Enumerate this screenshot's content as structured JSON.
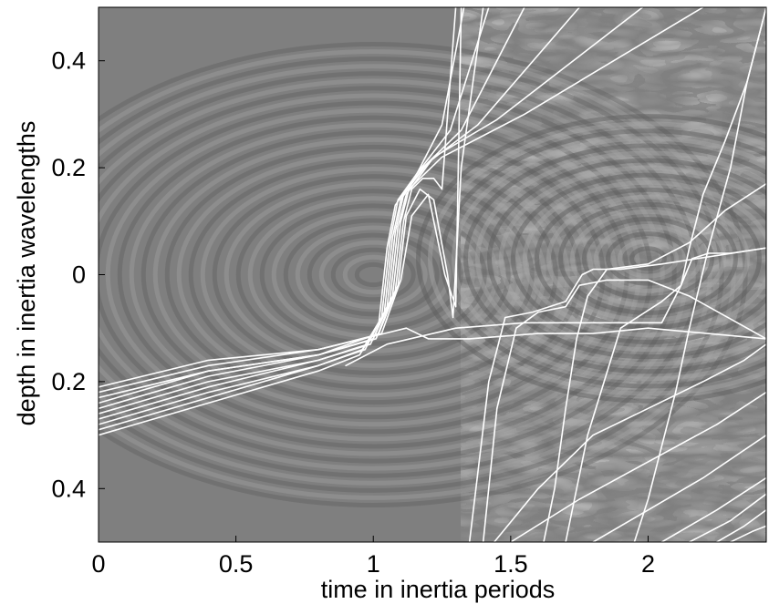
{
  "chart_data": {
    "type": "line",
    "title": "",
    "xlabel": "time in inertia periods",
    "ylabel": "depth in inertia wavelengths",
    "xlim": [
      0,
      2.43
    ],
    "ylim": [
      -0.5,
      0.5
    ],
    "x_ticks": [
      0,
      0.5,
      1,
      1.5,
      2
    ],
    "x_tick_labels": [
      "0",
      "0.5",
      "1",
      "1.5",
      "2"
    ],
    "y_ticks": [
      0.4,
      0.2,
      0,
      -0.2,
      -0.4
    ],
    "y_tick_labels": [
      "0.4",
      "0.2",
      "0",
      "0.2",
      "0.4"
    ],
    "grid": false,
    "background": "grayscale wave-field image",
    "colors": {
      "background_gray": "#7f7f7f",
      "ray": "#ffffff",
      "axes": "#000000"
    },
    "series": [
      {
        "x": [
          0,
          0.4,
          0.8,
          0.95,
          1.02,
          1.05,
          1.08,
          1.15,
          1.25,
          1.33
        ],
        "y": [
          -0.3,
          -0.24,
          -0.18,
          -0.15,
          -0.09,
          0.05,
          0.13,
          0.18,
          0.28,
          0.5
        ]
      },
      {
        "x": [
          0,
          0.4,
          0.8,
          0.96,
          1.03,
          1.06,
          1.09,
          1.16,
          1.28,
          1.42
        ],
        "y": [
          -0.29,
          -0.23,
          -0.17,
          -0.14,
          -0.08,
          0.06,
          0.14,
          0.19,
          0.27,
          0.5
        ]
      },
      {
        "x": [
          0,
          0.4,
          0.8,
          0.97,
          1.04,
          1.07,
          1.1,
          1.18,
          1.32,
          1.55
        ],
        "y": [
          -0.28,
          -0.22,
          -0.17,
          -0.14,
          -0.07,
          0.07,
          0.14,
          0.2,
          0.27,
          0.5
        ]
      },
      {
        "x": [
          0,
          0.4,
          0.8,
          0.98,
          1.05,
          1.08,
          1.11,
          1.2,
          1.38,
          1.75
        ],
        "y": [
          -0.27,
          -0.21,
          -0.16,
          -0.13,
          -0.06,
          0.08,
          0.15,
          0.21,
          0.28,
          0.5
        ]
      },
      {
        "x": [
          0,
          0.4,
          0.8,
          0.99,
          1.06,
          1.09,
          1.12,
          1.22,
          1.45,
          1.98
        ],
        "y": [
          -0.26,
          -0.2,
          -0.16,
          -0.13,
          -0.05,
          0.09,
          0.15,
          0.22,
          0.29,
          0.5
        ]
      },
      {
        "x": [
          0,
          0.4,
          0.8,
          1.0,
          1.07,
          1.1,
          1.13,
          1.25,
          1.55,
          2.2
        ],
        "y": [
          -0.25,
          -0.19,
          -0.15,
          -0.12,
          -0.04,
          0.1,
          0.16,
          0.22,
          0.3,
          0.5
        ]
      },
      {
        "x": [
          0,
          0.4,
          0.8,
          1.01,
          1.08,
          1.11,
          1.14,
          1.18,
          1.22,
          1.25,
          1.3
        ],
        "y": [
          -0.24,
          -0.18,
          -0.15,
          -0.12,
          -0.03,
          0.1,
          0.16,
          0.18,
          0.18,
          0.16,
          0.5
        ]
      },
      {
        "x": [
          0,
          0.4,
          0.8,
          1.02,
          1.09,
          1.12,
          1.17,
          1.22,
          1.27,
          1.29,
          1.32,
          1.4
        ],
        "y": [
          -0.23,
          -0.18,
          -0.15,
          -0.11,
          -0.02,
          0.11,
          0.16,
          0.14,
          0.0,
          -0.08,
          0.2,
          0.5
        ]
      },
      {
        "x": [
          0,
          0.4,
          0.8,
          1.03,
          1.1,
          1.14,
          1.2,
          1.26,
          1.3,
          1.32
        ],
        "y": [
          -0.22,
          -0.17,
          -0.14,
          -0.11,
          -0.01,
          0.11,
          0.15,
          0.0,
          -0.06,
          0.5
        ]
      },
      {
        "x": [
          0,
          0.4,
          0.8,
          1.04,
          1.12,
          1.2,
          1.35,
          1.6,
          1.8,
          2.0,
          2.43
        ],
        "y": [
          -0.21,
          -0.16,
          -0.14,
          -0.11,
          -0.1,
          -0.12,
          -0.12,
          -0.11,
          -0.11,
          -0.1,
          -0.12
        ]
      },
      {
        "x": [
          0.9,
          1.05,
          1.3,
          1.55,
          1.8,
          2.05,
          2.12,
          2.16,
          2.22,
          2.3,
          2.43
        ],
        "y": [
          -0.17,
          -0.13,
          -0.1,
          -0.09,
          -0.09,
          -0.09,
          -0.02,
          0.03,
          0.04,
          0.04,
          0.05
        ]
      },
      {
        "x": [
          1.4,
          1.45,
          1.52,
          1.6,
          1.7,
          1.75,
          1.85,
          2.0,
          2.15,
          2.43
        ],
        "y": [
          -0.5,
          -0.25,
          -0.1,
          -0.07,
          -0.06,
          -0.02,
          -0.01,
          -0.01,
          -0.04,
          -0.12
        ]
      },
      {
        "x": [
          1.35,
          1.42,
          1.48,
          1.58,
          1.7,
          1.76,
          1.8,
          1.9,
          2.05,
          2.43
        ],
        "y": [
          -0.5,
          -0.2,
          -0.08,
          -0.07,
          -0.05,
          0.0,
          0.01,
          0.01,
          0.02,
          0.05
        ]
      },
      {
        "x": [
          1.7,
          1.78,
          1.9,
          2.05,
          2.12,
          2.15,
          2.2,
          2.28,
          2.36,
          2.43
        ],
        "y": [
          -0.5,
          -0.3,
          -0.1,
          -0.05,
          -0.02,
          0.05,
          0.15,
          0.25,
          0.36,
          0.5
        ]
      },
      {
        "x": [
          1.62,
          1.66,
          1.7,
          1.74,
          1.78,
          1.85,
          2.0,
          2.15,
          2.28,
          2.43
        ],
        "y": [
          -0.5,
          -0.4,
          -0.25,
          -0.12,
          -0.04,
          0.01,
          0.02,
          0.06,
          0.12,
          0.17
        ]
      },
      {
        "x": [
          1.95,
          2.0,
          2.05,
          2.1,
          2.15,
          2.22,
          2.3,
          2.36,
          2.43
        ],
        "y": [
          -0.5,
          -0.42,
          -0.32,
          -0.22,
          -0.1,
          0.05,
          0.2,
          0.36,
          0.5
        ]
      },
      {
        "x": [
          1.44,
          1.6,
          1.8,
          2.0,
          2.2,
          2.35,
          2.43
        ],
        "y": [
          -0.5,
          -0.4,
          -0.3,
          -0.25,
          -0.2,
          -0.16,
          -0.13
        ]
      },
      {
        "x": [
          1.5,
          1.75,
          2.0,
          2.25,
          2.43
        ],
        "y": [
          -0.5,
          -0.42,
          -0.35,
          -0.28,
          -0.22
        ]
      },
      {
        "x": [
          1.8,
          2.0,
          2.2,
          2.43
        ],
        "y": [
          -0.5,
          -0.44,
          -0.38,
          -0.3
        ]
      },
      {
        "x": [
          2.05,
          2.25,
          2.43
        ],
        "y": [
          -0.5,
          -0.44,
          -0.38
        ]
      },
      {
        "x": [
          2.15,
          2.3,
          2.43
        ],
        "y": [
          -0.5,
          -0.46,
          -0.41
        ]
      },
      {
        "x": [
          2.25,
          2.35,
          2.43
        ],
        "y": [
          -0.5,
          -0.47,
          -0.44
        ]
      },
      {
        "x": [
          2.3,
          2.38,
          2.43
        ],
        "y": [
          -0.5,
          -0.48,
          -0.47
        ]
      }
    ]
  }
}
